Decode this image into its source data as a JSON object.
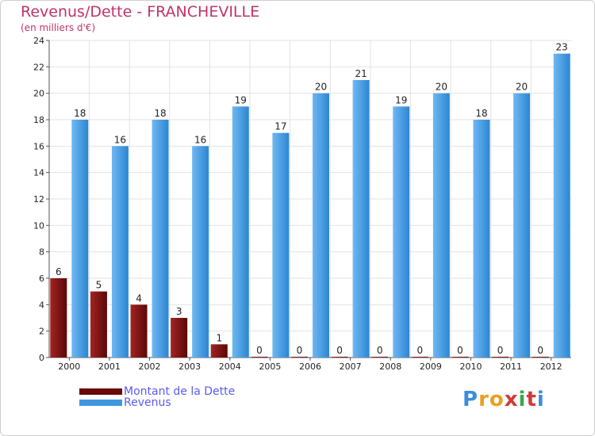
{
  "chart_data": {
    "type": "bar",
    "title": "Revenus/Dette - FRANCHEVILLE",
    "subtitle": "(en milliers d'€)",
    "categories": [
      "2000",
      "2001",
      "2002",
      "2003",
      "2004",
      "2005",
      "2006",
      "2007",
      "2008",
      "2009",
      "2010",
      "2011",
      "2012"
    ],
    "series": [
      {
        "name": "Montant de la Dette",
        "color": "#7a0a0a",
        "values": [
          6,
          5,
          4,
          3,
          1,
          0,
          0,
          0,
          0,
          0,
          0,
          0,
          0
        ]
      },
      {
        "name": "Revenus",
        "color": "#3f97e0",
        "values": [
          18,
          16,
          18,
          16,
          19,
          17,
          20,
          21,
          19,
          20,
          18,
          20,
          23
        ]
      }
    ],
    "ylim": [
      0,
      24
    ],
    "yticks": [
      0,
      2,
      4,
      6,
      8,
      10,
      12,
      14,
      16,
      18,
      20,
      22,
      24
    ],
    "grid": true,
    "legend_position": "bottom-left"
  },
  "logo": {
    "letters": [
      "P",
      "r",
      "o",
      "x",
      "i",
      "t",
      "i"
    ],
    "colors": [
      "#3a8fd8",
      "#e8a020",
      "#e8a020",
      "#d03a3a",
      "#3aa84a",
      "#d03a3a",
      "#3a8fd8"
    ]
  }
}
